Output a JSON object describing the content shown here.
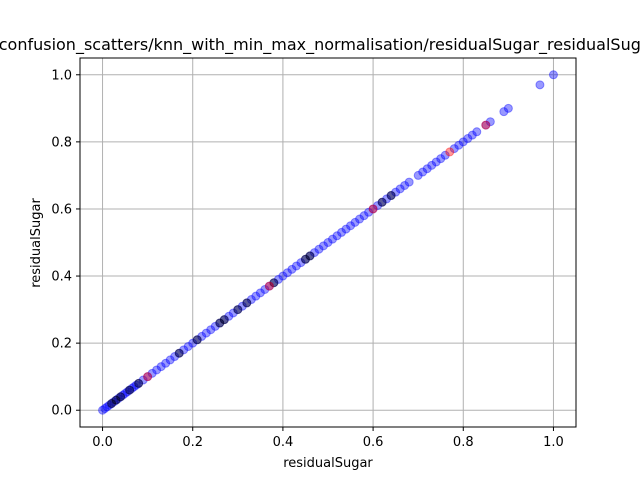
{
  "chart_data": {
    "type": "scatter",
    "title": "confusion_scatters/knn_with_min_max_normalisation/residualSugar_residualSugar",
    "xlabel": "residualSugar",
    "ylabel": "residualSugar",
    "xlim": [
      -0.05,
      1.05
    ],
    "ylim": [
      -0.05,
      1.05
    ],
    "xticks": [
      "0.0",
      "0.2",
      "0.4",
      "0.6",
      "0.8",
      "1.0"
    ],
    "yticks": [
      "0.0",
      "0.2",
      "0.4",
      "0.6",
      "0.8",
      "1.0"
    ],
    "grid": true,
    "series": [
      {
        "color": "#0000ff",
        "points_xy_equal": [
          0.0,
          0.005,
          0.01,
          0.015,
          0.02,
          0.025,
          0.03,
          0.035,
          0.04,
          0.045,
          0.05,
          0.055,
          0.06,
          0.065,
          0.07,
          0.075,
          0.08,
          0.09,
          0.1,
          0.11,
          0.12,
          0.13,
          0.14,
          0.15,
          0.16,
          0.17,
          0.18,
          0.19,
          0.2,
          0.21,
          0.22,
          0.23,
          0.24,
          0.25,
          0.26,
          0.27,
          0.28,
          0.29,
          0.3,
          0.31,
          0.32,
          0.33,
          0.34,
          0.35,
          0.36,
          0.37,
          0.38,
          0.39,
          0.4,
          0.41,
          0.42,
          0.43,
          0.44,
          0.45,
          0.46,
          0.47,
          0.48,
          0.49,
          0.5,
          0.51,
          0.52,
          0.53,
          0.54,
          0.55,
          0.56,
          0.57,
          0.58,
          0.59,
          0.6,
          0.61,
          0.62,
          0.63,
          0.64,
          0.65,
          0.66,
          0.67,
          0.68,
          0.7,
          0.71,
          0.72,
          0.73,
          0.74,
          0.75,
          0.76,
          0.78,
          0.79,
          0.8,
          0.81,
          0.82,
          0.83,
          0.85,
          0.86,
          0.89,
          0.9,
          0.97,
          1.0
        ]
      },
      {
        "color": "#000000",
        "points_xy_equal": [
          0.02,
          0.03,
          0.04,
          0.06,
          0.08,
          0.17,
          0.21,
          0.26,
          0.27,
          0.3,
          0.32,
          0.38,
          0.45,
          0.46,
          0.62,
          0.64
        ]
      },
      {
        "color": "#ff0000",
        "points_xy_equal": [
          0.1,
          0.37,
          0.6,
          0.77,
          0.85
        ]
      }
    ]
  }
}
